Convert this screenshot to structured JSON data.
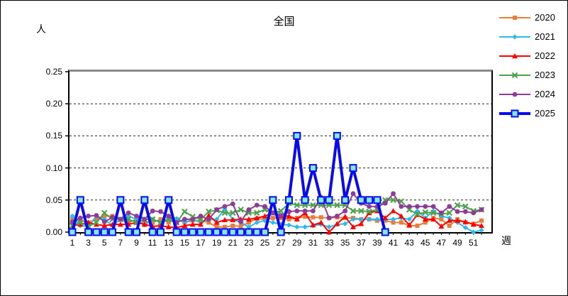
{
  "title": "全国",
  "labels": {
    "y_unit": "人",
    "x_unit": "週"
  },
  "chart_data": {
    "type": "line",
    "title": "全国",
    "ylabel": "人",
    "xlabel": "週",
    "ylim": [
      0,
      0.25
    ],
    "ytick_step": 0.05,
    "ytick_labels": [
      "0.00",
      "0.05",
      "0.10",
      "0.15",
      "0.20",
      "0.25"
    ],
    "xtick_labels": [
      "1",
      "3",
      "5",
      "7",
      "9",
      "11",
      "13",
      "15",
      "17",
      "19",
      "21",
      "23",
      "25",
      "27",
      "29",
      "31",
      "33",
      "35",
      "37",
      "39",
      "41",
      "43",
      "45",
      "47",
      "49",
      "51"
    ],
    "x_weeks": 52,
    "grid": "horizontal-dashed",
    "legend_position": "right-top",
    "series": [
      {
        "name": "2020",
        "color": "#E87D3C",
        "marker": "square",
        "line_width": 2,
        "values": [
          0.02,
          0.018,
          0.015,
          0.02,
          0.025,
          0.025,
          0.02,
          0.015,
          0.02,
          0.016,
          0.015,
          0.02,
          0.015,
          0.02,
          0.015,
          0.018,
          0.018,
          0.015,
          0.008,
          0.008,
          0.01,
          0.009,
          0.015,
          0.021,
          0.02,
          0.022,
          0.022,
          0.02,
          0.022,
          0.024,
          0.023,
          0.023,
          0.022,
          0.023,
          0.022,
          0.022,
          0.02,
          0.02,
          0.018,
          0.018,
          0.015,
          0.015,
          0.01,
          0.01,
          0.015,
          0.022,
          0.02,
          0.01,
          0.02,
          0.015,
          0.013,
          0.018
        ]
      },
      {
        "name": "2021",
        "color": "#2FB9EA",
        "marker": "diamond",
        "line_width": 2,
        "values": [
          0.025,
          0.01,
          0.009,
          0.025,
          0.02,
          0.01,
          0.02,
          0.025,
          0.02,
          0.011,
          0.02,
          0.015,
          0.021,
          0.021,
          0.015,
          0.02,
          0.015,
          0.02,
          0.02,
          0.036,
          0.02,
          0.015,
          0.008,
          0.015,
          0.018,
          0.015,
          0.012,
          0.011,
          0.008,
          0.008,
          0.01,
          0.012,
          0.008,
          0.012,
          0.013,
          0.02,
          0.02,
          0.02,
          0.02,
          0.02,
          0.02,
          0.022,
          0.02,
          0.033,
          0.022,
          0.033,
          0.025,
          0.022,
          0.015,
          0.007,
          0.0,
          0.003
        ]
      },
      {
        "name": "2022",
        "color": "#FF0000",
        "marker": "triangle",
        "line_width": 2,
        "values": [
          0.01,
          0.012,
          0.015,
          0.012,
          0.01,
          0.012,
          0.012,
          0.012,
          0.015,
          0.012,
          0.009,
          0.01,
          0.008,
          0.007,
          0.01,
          0.012,
          0.012,
          0.026,
          0.015,
          0.019,
          0.019,
          0.02,
          0.02,
          0.022,
          0.025,
          0.03,
          0.025,
          0.025,
          0.02,
          0.03,
          0.011,
          0.015,
          0.0,
          0.013,
          0.024,
          0.008,
          0.013,
          0.03,
          0.033,
          0.022,
          0.033,
          0.025,
          0.011,
          0.027,
          0.02,
          0.02,
          0.009,
          0.018,
          0.018,
          0.016,
          0.012,
          0.01
        ]
      },
      {
        "name": "2023",
        "color": "#4EA24E",
        "marker": "x",
        "line_width": 2,
        "values": [
          0.01,
          0.015,
          0.009,
          0.015,
          0.03,
          0.02,
          0.02,
          0.02,
          0.015,
          0.02,
          0.02,
          0.015,
          0.02,
          0.015,
          0.032,
          0.024,
          0.02,
          0.032,
          0.034,
          0.03,
          0.03,
          0.035,
          0.03,
          0.03,
          0.035,
          0.03,
          0.033,
          0.045,
          0.042,
          0.042,
          0.042,
          0.042,
          0.042,
          0.042,
          0.042,
          0.033,
          0.033,
          0.032,
          0.035,
          0.05,
          0.05,
          0.048,
          0.035,
          0.028,
          0.031,
          0.03,
          0.028,
          0.03,
          0.042,
          0.04,
          0.033,
          0.035
        ]
      },
      {
        "name": "2024",
        "color": "#8E3D97",
        "marker": "circle",
        "line_width": 2,
        "values": [
          0.016,
          0.022,
          0.025,
          0.026,
          0.016,
          0.023,
          0.02,
          0.03,
          0.025,
          0.02,
          0.033,
          0.032,
          0.025,
          0.015,
          0.02,
          0.02,
          0.025,
          0.02,
          0.035,
          0.04,
          0.044,
          0.016,
          0.035,
          0.042,
          0.04,
          0.03,
          0.026,
          0.032,
          0.033,
          0.033,
          0.033,
          0.054,
          0.022,
          0.025,
          0.033,
          0.06,
          0.045,
          0.04,
          0.04,
          0.045,
          0.06,
          0.04,
          0.04,
          0.04,
          0.04,
          0.04,
          0.03,
          0.04,
          0.032,
          0.032,
          0.03,
          0.035
        ]
      },
      {
        "name": "2025",
        "color": "#0A0AF0",
        "marker": "open-square",
        "marker_fill": "#7FE9F2",
        "line_width": 4,
        "values": [
          0.0,
          0.05,
          0.0,
          0.0,
          0.0,
          0.0,
          0.05,
          0.0,
          0.0,
          0.05,
          0.0,
          0.0,
          0.05,
          0.0,
          0.0,
          0.0,
          0.0,
          0.0,
          0.0,
          0.0,
          0.0,
          0.0,
          0.0,
          0.0,
          0.0,
          0.05,
          0.0,
          0.05,
          0.15,
          0.05,
          0.1,
          0.05,
          0.05,
          0.15,
          0.05,
          0.1,
          0.05,
          0.05,
          0.05,
          0.0,
          null,
          null,
          null,
          null,
          null,
          null,
          null,
          null,
          null,
          null,
          null,
          null
        ]
      }
    ]
  }
}
